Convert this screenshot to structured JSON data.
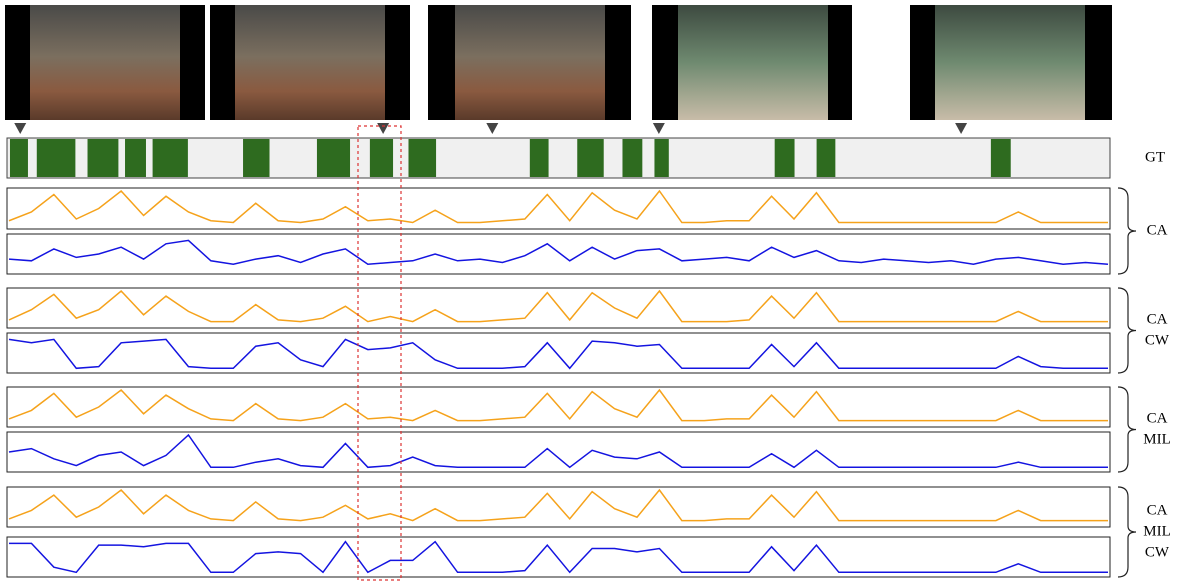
{
  "markers": [
    1.2,
    34.1,
    44.0,
    59.1,
    86.5
  ],
  "gt": {
    "label": "GT",
    "color": "#2e6b1f",
    "segments": [
      [
        0.27,
        1.9
      ],
      [
        2.7,
        6.2
      ],
      [
        7.3,
        10.1
      ],
      [
        10.7,
        12.6
      ],
      [
        13.2,
        16.4
      ],
      [
        21.4,
        23.8
      ],
      [
        28.1,
        31.1
      ],
      [
        32.9,
        35.0
      ],
      [
        36.4,
        38.9
      ],
      [
        47.4,
        49.1
      ],
      [
        51.7,
        54.1
      ],
      [
        55.8,
        57.6
      ],
      [
        58.7,
        60.0
      ],
      [
        69.6,
        71.4
      ],
      [
        73.4,
        75.1
      ],
      [
        89.2,
        91.0
      ]
    ]
  },
  "groups": [
    {
      "label_lines": [
        "CA"
      ],
      "series": [
        {
          "color": "#f5a21b",
          "values": [
            0.15,
            0.4,
            0.9,
            0.2,
            0.5,
            1.0,
            0.3,
            0.85,
            0.4,
            0.15,
            0.1,
            0.65,
            0.15,
            0.1,
            0.2,
            0.55,
            0.15,
            0.2,
            0.1,
            0.45,
            0.1,
            0.1,
            0.15,
            0.2,
            0.9,
            0.15,
            0.95,
            0.45,
            0.2,
            1.0,
            0.1,
            0.1,
            0.15,
            0.15,
            0.85,
            0.2,
            0.95,
            0.1,
            0.1,
            0.1,
            0.1,
            0.1,
            0.1,
            0.1,
            0.1,
            0.4,
            0.1,
            0.1,
            0.1,
            0.1
          ]
        },
        {
          "color": "#1414e0",
          "values": [
            0.35,
            0.3,
            0.65,
            0.4,
            0.5,
            0.7,
            0.35,
            0.8,
            0.9,
            0.3,
            0.2,
            0.35,
            0.45,
            0.25,
            0.5,
            0.65,
            0.2,
            0.25,
            0.3,
            0.5,
            0.3,
            0.35,
            0.25,
            0.45,
            0.8,
            0.3,
            0.7,
            0.35,
            0.6,
            0.65,
            0.3,
            0.35,
            0.4,
            0.3,
            0.7,
            0.4,
            0.6,
            0.3,
            0.25,
            0.35,
            0.3,
            0.25,
            0.3,
            0.2,
            0.35,
            0.4,
            0.3,
            0.2,
            0.25,
            0.2
          ]
        }
      ]
    },
    {
      "label_lines": [
        "CA",
        "CW"
      ],
      "series": [
        {
          "color": "#f5a21b",
          "values": [
            0.15,
            0.45,
            0.9,
            0.2,
            0.45,
            1.0,
            0.3,
            0.85,
            0.4,
            0.1,
            0.1,
            0.6,
            0.15,
            0.1,
            0.2,
            0.55,
            0.1,
            0.25,
            0.1,
            0.45,
            0.1,
            0.1,
            0.15,
            0.2,
            0.95,
            0.15,
            0.95,
            0.5,
            0.2,
            1.0,
            0.1,
            0.1,
            0.1,
            0.15,
            0.85,
            0.2,
            0.95,
            0.1,
            0.1,
            0.1,
            0.1,
            0.1,
            0.1,
            0.1,
            0.1,
            0.4,
            0.1,
            0.1,
            0.1,
            0.1
          ]
        },
        {
          "color": "#1414e0",
          "values": [
            0.9,
            0.8,
            0.9,
            0.05,
            0.1,
            0.8,
            0.85,
            0.9,
            0.1,
            0.05,
            0.05,
            0.7,
            0.8,
            0.3,
            0.1,
            0.9,
            0.6,
            0.65,
            0.8,
            0.3,
            0.05,
            0.05,
            0.05,
            0.1,
            0.8,
            0.05,
            0.85,
            0.8,
            0.7,
            0.75,
            0.05,
            0.05,
            0.05,
            0.05,
            0.75,
            0.1,
            0.8,
            0.05,
            0.05,
            0.05,
            0.05,
            0.05,
            0.05,
            0.05,
            0.05,
            0.4,
            0.1,
            0.05,
            0.05,
            0.05
          ]
        }
      ]
    },
    {
      "label_lines": [
        "CA",
        "MIL"
      ],
      "series": [
        {
          "color": "#f5a21b",
          "values": [
            0.15,
            0.4,
            0.9,
            0.2,
            0.5,
            1.0,
            0.3,
            0.85,
            0.45,
            0.15,
            0.1,
            0.6,
            0.15,
            0.1,
            0.2,
            0.6,
            0.15,
            0.2,
            0.1,
            0.4,
            0.1,
            0.1,
            0.15,
            0.2,
            0.9,
            0.15,
            0.95,
            0.45,
            0.2,
            1.0,
            0.1,
            0.1,
            0.15,
            0.15,
            0.85,
            0.2,
            0.95,
            0.1,
            0.1,
            0.1,
            0.1,
            0.1,
            0.1,
            0.1,
            0.1,
            0.4,
            0.1,
            0.1,
            0.1,
            0.1
          ]
        },
        {
          "color": "#1414e0",
          "values": [
            0.5,
            0.6,
            0.3,
            0.1,
            0.4,
            0.5,
            0.1,
            0.4,
            1.0,
            0.05,
            0.05,
            0.2,
            0.3,
            0.1,
            0.05,
            0.75,
            0.05,
            0.1,
            0.35,
            0.1,
            0.05,
            0.05,
            0.05,
            0.05,
            0.6,
            0.05,
            0.55,
            0.35,
            0.3,
            0.5,
            0.05,
            0.05,
            0.05,
            0.05,
            0.45,
            0.05,
            0.55,
            0.05,
            0.05,
            0.05,
            0.05,
            0.05,
            0.05,
            0.05,
            0.05,
            0.2,
            0.05,
            0.05,
            0.05,
            0.05
          ]
        }
      ]
    },
    {
      "label_lines": [
        "CA",
        "MIL",
        "CW"
      ],
      "series": [
        {
          "color": "#f5a21b",
          "values": [
            0.15,
            0.4,
            0.85,
            0.2,
            0.5,
            1.0,
            0.3,
            0.85,
            0.4,
            0.15,
            0.1,
            0.65,
            0.15,
            0.1,
            0.2,
            0.55,
            0.15,
            0.3,
            0.1,
            0.45,
            0.1,
            0.1,
            0.15,
            0.2,
            0.9,
            0.15,
            0.95,
            0.45,
            0.2,
            1.0,
            0.1,
            0.1,
            0.15,
            0.15,
            0.85,
            0.2,
            0.95,
            0.1,
            0.1,
            0.1,
            0.1,
            0.1,
            0.1,
            0.1,
            0.1,
            0.4,
            0.1,
            0.1,
            0.1,
            0.1
          ]
        },
        {
          "color": "#1414e0",
          "values": [
            0.9,
            0.9,
            0.2,
            0.05,
            0.85,
            0.85,
            0.8,
            0.9,
            0.9,
            0.05,
            0.05,
            0.6,
            0.65,
            0.6,
            0.05,
            0.95,
            0.05,
            0.4,
            0.4,
            0.95,
            0.05,
            0.05,
            0.05,
            0.1,
            0.85,
            0.05,
            0.75,
            0.75,
            0.65,
            0.75,
            0.05,
            0.05,
            0.05,
            0.05,
            0.8,
            0.1,
            0.85,
            0.05,
            0.05,
            0.05,
            0.05,
            0.05,
            0.05,
            0.05,
            0.05,
            0.3,
            0.05,
            0.05,
            0.05,
            0.05
          ]
        }
      ]
    }
  ]
}
